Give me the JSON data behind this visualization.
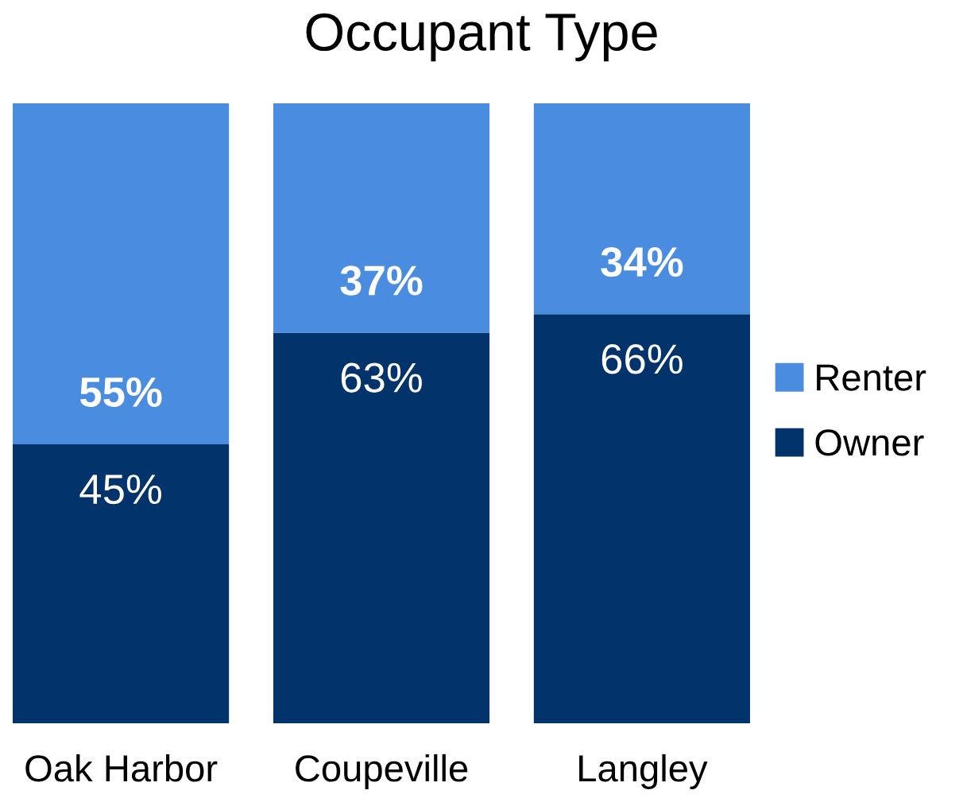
{
  "chart_data": {
    "type": "bar",
    "title": "Occupant Type",
    "stacked": true,
    "legend": "right",
    "grid": false,
    "categories": [
      "Oak Harbor",
      "Coupeville",
      "Langley"
    ],
    "series": [
      {
        "name": "Owner",
        "color": "#03336b",
        "values": [
          45,
          63,
          66
        ],
        "value_labels": [
          "45%",
          "63%",
          "66%"
        ]
      },
      {
        "name": "Renter",
        "color": "#4a8de0",
        "values": [
          55,
          37,
          34
        ],
        "value_labels": [
          "55%",
          "37%",
          "34%"
        ]
      }
    ]
  }
}
